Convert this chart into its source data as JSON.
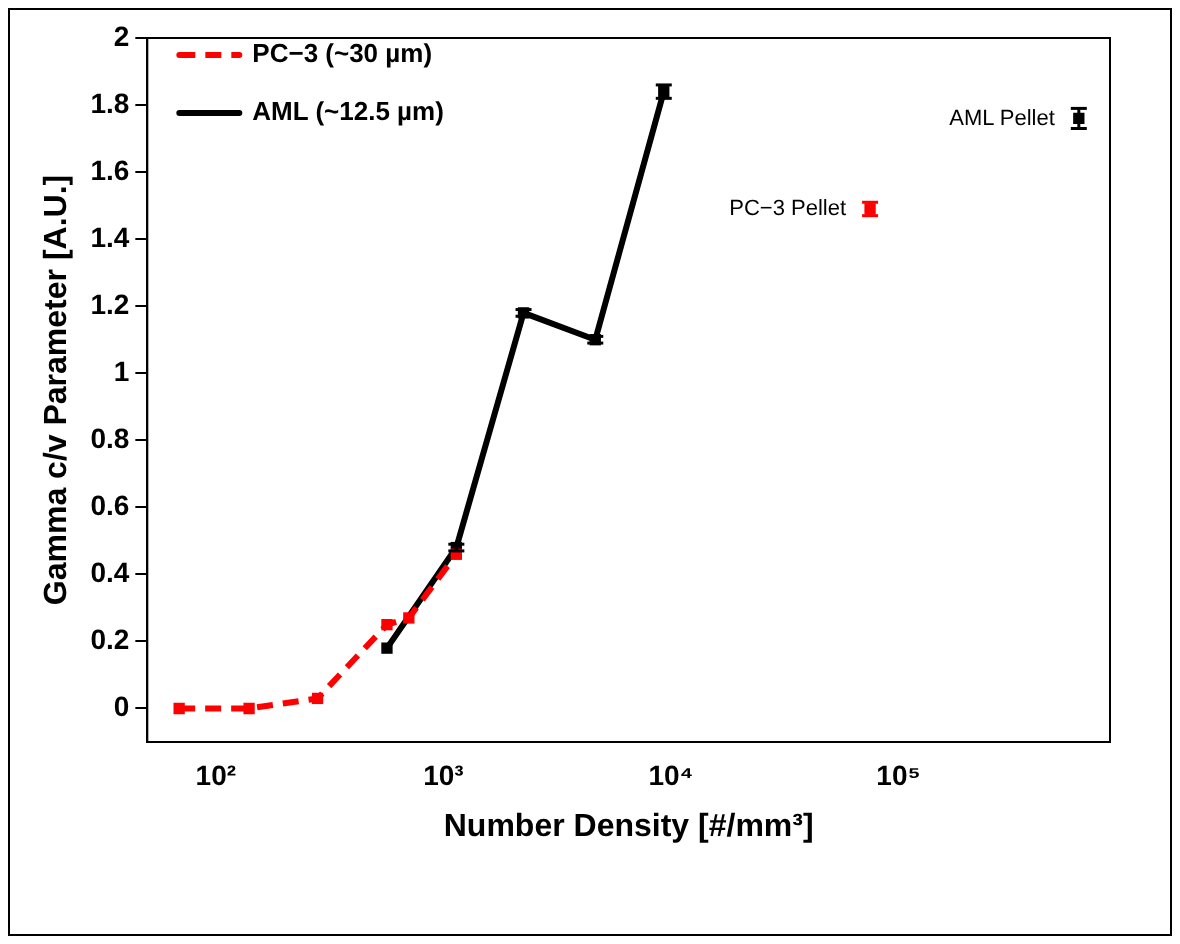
{
  "chart_data": {
    "type": "line",
    "xlabel": "Number Density [#/mm³]",
    "ylabel": "Gamma c/v Parameter [A.U.]",
    "log": "x",
    "xlim": [
      50,
      850000
    ],
    "xticks": [
      {
        "value": 100,
        "label": "10²"
      },
      {
        "value": 1000,
        "label": "10³"
      },
      {
        "value": 10000,
        "label": "10⁴"
      },
      {
        "value": 100000,
        "label": "10⁵"
      }
    ],
    "ylim": [
      -0.1,
      2
    ],
    "yticks": [
      0,
      0.2,
      0.4,
      0.6,
      0.8,
      1,
      1.2,
      1.4,
      1.6,
      1.8,
      2
    ],
    "grid": false,
    "legend": "top left",
    "marker": "square",
    "series": [
      {
        "name": "PC−3 (~30 µm)",
        "color": "#ff0000",
        "line_style": "dashed",
        "x": [
          69,
          140,
          280,
          565,
          705,
          1140
        ],
        "values": [
          0,
          0,
          0.03,
          0.25,
          0.27,
          0.46
        ]
      },
      {
        "name": "AML (~12.5 µm)",
        "color": "#000000",
        "line_style": "solid",
        "x": [
          565,
          1140,
          2250,
          4650,
          9300
        ],
        "values": [
          0.18,
          0.48,
          1.18,
          1.1,
          1.84
        ],
        "errors": [
          null,
          0.01,
          0.01,
          0.01,
          0.02
        ]
      },
      {
        "type": "scatter",
        "color": "#ff0000",
        "x": [
          75000
        ],
        "values": [
          1.49
        ],
        "errors": [
          0.02
        ]
      },
      {
        "type": "scatter",
        "color": "#000000",
        "x": [
          620000
        ],
        "values": [
          1.76
        ],
        "errors": [
          0.03
        ]
      }
    ],
    "annotations": [
      {
        "text": "PC−3 Pellet",
        "x": 75000,
        "y": 1.49
      },
      {
        "text": "AML Pellet",
        "x": 620000,
        "y": 1.76
      }
    ]
  }
}
